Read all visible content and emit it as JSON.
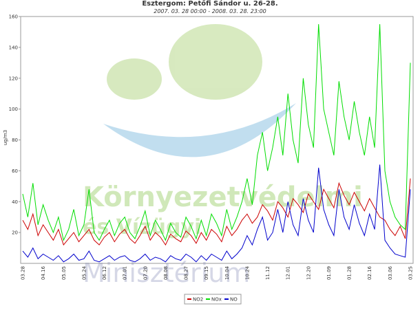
{
  "chart_data": {
    "type": "line",
    "title": "Esztergom: Petőfi Sándor u. 26-28.",
    "subtitle": "2007. 03. 28 00:00 - 2008. 03. 28. 23:00",
    "y_label": "ug/m3",
    "watermark": [
      "Környezetvédelmi",
      "és Vízügyi",
      "Minisztérium"
    ],
    "categories": [
      "03.28",
      null,
      null,
      null,
      "04.16",
      null,
      null,
      null,
      "05.05",
      null,
      null,
      null,
      "05.24",
      null,
      null,
      null,
      "06.12",
      null,
      null,
      null,
      "07.01",
      null,
      null,
      null,
      "07.20",
      null,
      null,
      null,
      "08.08",
      null,
      null,
      null,
      "08.27",
      null,
      null,
      null,
      "09.15",
      null,
      null,
      null,
      "10.04",
      null,
      null,
      null,
      "10.24",
      null,
      null,
      null,
      "11.12",
      null,
      null,
      null,
      "12.01",
      null,
      null,
      null,
      "12.20",
      null,
      null,
      null,
      "01.09",
      null,
      null,
      null,
      "01.28",
      null,
      null,
      null,
      "02.16",
      null,
      null,
      null,
      "03.06",
      null,
      null,
      null,
      "03.25"
    ],
    "series": [
      {
        "name": "NO2",
        "color": "#cc0000",
        "values": [
          28,
          22,
          32,
          18,
          25,
          20,
          15,
          22,
          12,
          16,
          20,
          14,
          18,
          22,
          15,
          12,
          17,
          20,
          14,
          19,
          22,
          16,
          13,
          18,
          24,
          15,
          20,
          17,
          12,
          19,
          16,
          14,
          21,
          18,
          13,
          20,
          15,
          22,
          19,
          14,
          24,
          18,
          22,
          28,
          32,
          26,
          30,
          38,
          34,
          28,
          40,
          36,
          30,
          42,
          38,
          33,
          45,
          40,
          35,
          48,
          42,
          36,
          52,
          44,
          38,
          46,
          40,
          34,
          42,
          36,
          30,
          28,
          22,
          18,
          24,
          16,
          55
        ]
      },
      {
        "name": "NOx",
        "color": "#00dd00",
        "values": [
          45,
          30,
          52,
          25,
          38,
          28,
          20,
          30,
          15,
          22,
          35,
          18,
          25,
          48,
          20,
          15,
          22,
          28,
          18,
          26,
          30,
          20,
          16,
          24,
          34,
          18,
          28,
          22,
          15,
          26,
          20,
          17,
          30,
          24,
          16,
          28,
          18,
          32,
          26,
          18,
          35,
          22,
          30,
          40,
          55,
          38,
          70,
          85,
          60,
          75,
          95,
          70,
          110,
          80,
          65,
          120,
          90,
          75,
          155,
          100,
          85,
          70,
          118,
          95,
          80,
          105,
          85,
          70,
          95,
          75,
          155,
          60,
          40,
          30,
          25,
          22,
          130
        ]
      },
      {
        "name": "NO",
        "color": "#0000cc",
        "values": [
          8,
          4,
          10,
          3,
          6,
          4,
          2,
          5,
          1,
          3,
          6,
          2,
          3,
          8,
          2,
          1,
          3,
          5,
          2,
          4,
          5,
          2,
          1,
          3,
          6,
          2,
          4,
          3,
          1,
          5,
          3,
          2,
          6,
          4,
          1,
          5,
          2,
          6,
          4,
          2,
          8,
          3,
          6,
          10,
          18,
          12,
          22,
          30,
          15,
          20,
          35,
          20,
          40,
          25,
          18,
          42,
          28,
          20,
          62,
          35,
          25,
          18,
          48,
          30,
          22,
          38,
          26,
          18,
          32,
          22,
          64,
          15,
          10,
          6,
          5,
          4,
          48
        ]
      }
    ],
    "ylim": [
      0,
      160
    ],
    "yticks": [
      20,
      40,
      60,
      80,
      100,
      120,
      140,
      160
    ],
    "grid": false
  }
}
